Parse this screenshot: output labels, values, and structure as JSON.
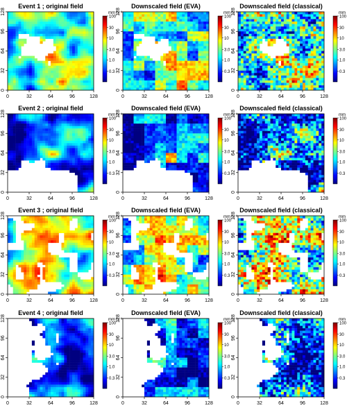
{
  "figure": {
    "colors": {
      "missing": "#ffffff",
      "frame": "#000000"
    }
  },
  "chart_data": [
    {
      "type": "heatmap",
      "title": "Event 1 ; original field",
      "row": 1,
      "col": 1,
      "x_ticks": [
        "0",
        "32",
        "64",
        "96",
        "128"
      ],
      "y_ticks": [
        "0",
        "32",
        "64",
        "96",
        "128"
      ],
      "xlim": [
        0,
        128
      ],
      "ylim": [
        0,
        128
      ],
      "colorbar": {
        "unit": "mm h⁻¹",
        "ticks": [
          "100",
          "30",
          "10",
          "3.0",
          "1.0",
          "0.3"
        ],
        "range": [
          0.1,
          100
        ],
        "scale": "log"
      },
      "pattern": {
        "rain_fraction": 0.91,
        "mean_level": 0.45,
        "coarseness": "smooth",
        "hole": "centre-left"
      }
    },
    {
      "type": "heatmap",
      "title": "Downscaled field (EVA)",
      "row": 1,
      "col": 2,
      "x_ticks": [
        "0",
        "32",
        "64",
        "96",
        "128"
      ],
      "y_ticks": [
        "0",
        "32",
        "64",
        "96",
        "128"
      ],
      "xlim": [
        0,
        128
      ],
      "ylim": [
        0,
        128
      ],
      "colorbar": {
        "unit": "mm h⁻¹",
        "ticks": [
          "100",
          "30",
          "10",
          "3.0",
          "1.0",
          "0.3"
        ],
        "range": [
          0.1,
          100
        ],
        "scale": "log"
      },
      "pattern": {
        "rain_fraction": 0.88,
        "mean_level": 0.45,
        "coarseness": "blocky",
        "hole": "centre-left"
      }
    },
    {
      "type": "heatmap",
      "title": "Downscaled field (classical)",
      "row": 1,
      "col": 3,
      "x_ticks": [
        "0",
        "32",
        "64",
        "96",
        "128"
      ],
      "y_ticks": [
        "0",
        "32",
        "64",
        "96",
        "128"
      ],
      "xlim": [
        0,
        128
      ],
      "ylim": [
        0,
        128
      ],
      "colorbar": {
        "unit": "mm h⁻¹",
        "ticks": [
          "100",
          "30",
          "10",
          "3.0",
          "1.0",
          "0.3"
        ],
        "range": [
          0.1,
          100
        ],
        "scale": "log"
      },
      "pattern": {
        "rain_fraction": 0.92,
        "mean_level": 0.42,
        "coarseness": "noisy",
        "hole": "centre"
      }
    },
    {
      "type": "heatmap",
      "title": "Event 2 ; original field",
      "row": 2,
      "col": 1,
      "x_ticks": [
        "0",
        "32",
        "64",
        "96",
        "128"
      ],
      "y_ticks": [
        "0",
        "32",
        "64",
        "96",
        "128"
      ],
      "xlim": [
        0,
        128
      ],
      "ylim": [
        0,
        128
      ],
      "colorbar": {
        "unit": "mm h⁻¹",
        "ticks": [
          "100",
          "30",
          "10",
          "3.0",
          "1.0",
          "0.3"
        ],
        "range": [
          0.1,
          100
        ],
        "scale": "log"
      },
      "pattern": {
        "rain_fraction": 0.8,
        "mean_level": 0.22,
        "coarseness": "smooth",
        "hole": "bottom"
      }
    },
    {
      "type": "heatmap",
      "title": "Downscaled field (EVA)",
      "row": 2,
      "col": 2,
      "x_ticks": [
        "0",
        "32",
        "64",
        "96",
        "128"
      ],
      "y_ticks": [
        "0",
        "32",
        "64",
        "96",
        "128"
      ],
      "xlim": [
        0,
        128
      ],
      "ylim": [
        0,
        128
      ],
      "colorbar": {
        "unit": "mm h⁻¹",
        "ticks": [
          "100",
          "30",
          "10",
          "3.0",
          "1.0",
          "0.3"
        ],
        "range": [
          0.1,
          100
        ],
        "scale": "log"
      },
      "pattern": {
        "rain_fraction": 0.78,
        "mean_level": 0.22,
        "coarseness": "blocky",
        "hole": "bottom"
      }
    },
    {
      "type": "heatmap",
      "title": "Downscaled field (classical)",
      "row": 2,
      "col": 3,
      "x_ticks": [
        "0",
        "32",
        "64",
        "96",
        "128"
      ],
      "y_ticks": [
        "0",
        "32",
        "64",
        "96",
        "128"
      ],
      "xlim": [
        0,
        128
      ],
      "ylim": [
        0,
        128
      ],
      "colorbar": {
        "unit": "mm h⁻¹",
        "ticks": [
          "100",
          "30",
          "10",
          "3.0",
          "1.0",
          "0.3"
        ],
        "range": [
          0.1,
          100
        ],
        "scale": "log"
      },
      "pattern": {
        "rain_fraction": 0.78,
        "mean_level": 0.22,
        "coarseness": "noisy",
        "hole": "bottom"
      }
    },
    {
      "type": "heatmap",
      "title": "Event 3 ; original field",
      "row": 3,
      "col": 1,
      "x_ticks": [
        "0",
        "32",
        "64",
        "96",
        "128"
      ],
      "y_ticks": [
        "0",
        "32",
        "64",
        "96",
        "128"
      ],
      "xlim": [
        0,
        128
      ],
      "ylim": [
        0,
        128
      ],
      "colorbar": {
        "unit": "mm h⁻¹",
        "ticks": [
          "100",
          "30",
          "10",
          "3.0",
          "1.0",
          "0.3"
        ],
        "range": [
          0.1,
          100
        ],
        "scale": "log"
      },
      "pattern": {
        "rain_fraction": 0.72,
        "mean_level": 0.5,
        "coarseness": "smooth",
        "hole": "scattered"
      }
    },
    {
      "type": "heatmap",
      "title": "Downscaled field (EVA)",
      "row": 3,
      "col": 2,
      "x_ticks": [
        "0",
        "32",
        "64",
        "96",
        "128"
      ],
      "y_ticks": [
        "0",
        "32",
        "64",
        "96",
        "128"
      ],
      "xlim": [
        0,
        128
      ],
      "ylim": [
        0,
        128
      ],
      "colorbar": {
        "unit": "mm h⁻¹",
        "ticks": [
          "100",
          "30",
          "10",
          "3.0",
          "1.0",
          "0.3"
        ],
        "range": [
          0.1,
          100
        ],
        "scale": "log"
      },
      "pattern": {
        "rain_fraction": 0.74,
        "mean_level": 0.48,
        "coarseness": "blocky",
        "hole": "scattered"
      }
    },
    {
      "type": "heatmap",
      "title": "Downscaled field (classical)",
      "row": 3,
      "col": 3,
      "x_ticks": [
        "0",
        "32",
        "64",
        "96",
        "128"
      ],
      "y_ticks": [
        "0",
        "32",
        "64",
        "96",
        "128"
      ],
      "xlim": [
        0,
        128
      ],
      "ylim": [
        0,
        128
      ],
      "colorbar": {
        "unit": "mm h⁻¹",
        "ticks": [
          "100",
          "30",
          "10",
          "3.0",
          "1.0",
          "0.3"
        ],
        "range": [
          0.1,
          100
        ],
        "scale": "log"
      },
      "pattern": {
        "rain_fraction": 0.74,
        "mean_level": 0.46,
        "coarseness": "noisy",
        "hole": "scattered"
      }
    },
    {
      "type": "heatmap",
      "title": "Event 4 ; original field",
      "row": 4,
      "col": 1,
      "x_ticks": [
        "0",
        "32",
        "64",
        "96",
        "128"
      ],
      "y_ticks": [
        "0",
        "32",
        "64",
        "96",
        "128"
      ],
      "xlim": [
        0,
        128
      ],
      "ylim": [
        0,
        128
      ],
      "colorbar": {
        "unit": "mm h⁻¹",
        "ticks": [
          "100",
          "30",
          "10",
          "3.0",
          "1.0",
          "0.3"
        ],
        "range": [
          0.1,
          100
        ],
        "scale": "log"
      },
      "pattern": {
        "rain_fraction": 0.6,
        "mean_level": 0.2,
        "coarseness": "smooth",
        "hole": "left"
      }
    },
    {
      "type": "heatmap",
      "title": "Downscaled field (EVA)",
      "row": 4,
      "col": 2,
      "x_ticks": [
        "0",
        "32",
        "64",
        "96",
        "128"
      ],
      "y_ticks": [
        "0",
        "32",
        "64",
        "96",
        "128"
      ],
      "xlim": [
        0,
        128
      ],
      "ylim": [
        0,
        128
      ],
      "colorbar": {
        "unit": "mm h⁻¹",
        "ticks": [
          "100",
          "30",
          "10",
          "3.0",
          "1.0",
          "0.3"
        ],
        "range": [
          0.1,
          100
        ],
        "scale": "log"
      },
      "pattern": {
        "rain_fraction": 0.58,
        "mean_level": 0.22,
        "coarseness": "blocky",
        "hole": "left"
      }
    },
    {
      "type": "heatmap",
      "title": "Downscaled field (classical)",
      "row": 4,
      "col": 3,
      "x_ticks": [
        "0",
        "32",
        "64",
        "96",
        "128"
      ],
      "y_ticks": [
        "0",
        "32",
        "64",
        "96",
        "128"
      ],
      "xlim": [
        0,
        128
      ],
      "ylim": [
        0,
        128
      ],
      "colorbar": {
        "unit": "mm h⁻¹",
        "ticks": [
          "100",
          "30",
          "10",
          "3.0",
          "1.0",
          "0.3"
        ],
        "range": [
          0.1,
          100
        ],
        "scale": "log"
      },
      "pattern": {
        "rain_fraction": 0.55,
        "mean_level": 0.22,
        "coarseness": "noisy",
        "hole": "left"
      }
    }
  ]
}
